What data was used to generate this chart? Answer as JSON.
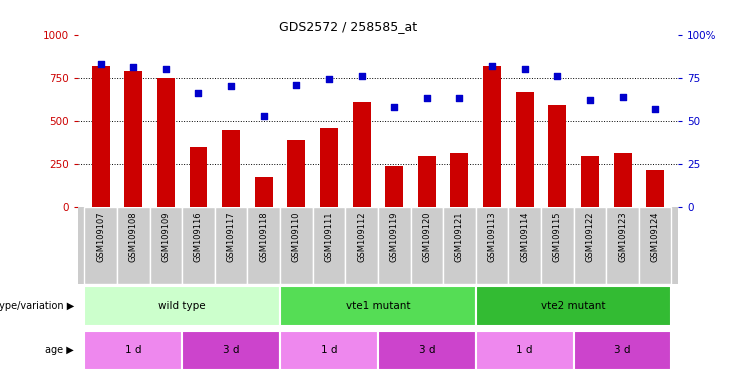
{
  "title": "GDS2572 / 258585_at",
  "samples": [
    "GSM109107",
    "GSM109108",
    "GSM109109",
    "GSM109116",
    "GSM109117",
    "GSM109118",
    "GSM109110",
    "GSM109111",
    "GSM109112",
    "GSM109119",
    "GSM109120",
    "GSM109121",
    "GSM109113",
    "GSM109114",
    "GSM109115",
    "GSM109122",
    "GSM109123",
    "GSM109124"
  ],
  "counts": [
    820,
    790,
    750,
    350,
    450,
    175,
    390,
    460,
    610,
    240,
    300,
    315,
    820,
    670,
    590,
    295,
    315,
    215
  ],
  "percentiles": [
    83,
    81,
    80,
    66,
    70,
    53,
    71,
    74,
    76,
    58,
    63,
    63,
    82,
    80,
    76,
    62,
    64,
    57
  ],
  "bar_color": "#cc0000",
  "dot_color": "#0000cc",
  "ylim_left": [
    0,
    1000
  ],
  "ylim_right": [
    0,
    100
  ],
  "yticks_left": [
    0,
    250,
    500,
    750,
    1000
  ],
  "ytick_labels_left": [
    "0",
    "250",
    "500",
    "750",
    "1000"
  ],
  "yticks_right": [
    0,
    25,
    50,
    75,
    100
  ],
  "ytick_labels_right": [
    "0",
    "25",
    "50",
    "75",
    "100%"
  ],
  "grid_values": [
    250,
    500,
    750
  ],
  "genotype_groups": [
    {
      "label": "wild type",
      "start": 0,
      "end": 6,
      "color": "#ccffcc"
    },
    {
      "label": "vte1 mutant",
      "start": 6,
      "end": 12,
      "color": "#55dd55"
    },
    {
      "label": "vte2 mutant",
      "start": 12,
      "end": 18,
      "color": "#33bb33"
    }
  ],
  "age_groups": [
    {
      "label": "1 d",
      "start": 0,
      "end": 3,
      "color": "#ee88ee"
    },
    {
      "label": "3 d",
      "start": 3,
      "end": 6,
      "color": "#cc44cc"
    },
    {
      "label": "1 d",
      "start": 6,
      "end": 9,
      "color": "#ee88ee"
    },
    {
      "label": "3 d",
      "start": 9,
      "end": 12,
      "color": "#cc44cc"
    },
    {
      "label": "1 d",
      "start": 12,
      "end": 15,
      "color": "#ee88ee"
    },
    {
      "label": "3 d",
      "start": 15,
      "end": 18,
      "color": "#cc44cc"
    }
  ],
  "legend_count_color": "#cc0000",
  "legend_dot_color": "#0000cc",
  "genotype_label": "genotype/variation",
  "age_label": "age",
  "bg_color": "#ffffff",
  "xtick_bg_color": "#cccccc"
}
